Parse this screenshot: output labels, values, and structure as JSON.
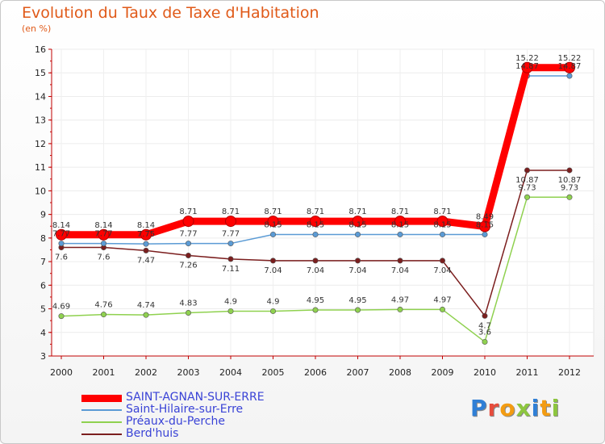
{
  "title": "Evolution du Taux de Taxe d'Habitation",
  "unit": "(en %)",
  "logo": "Proxiti",
  "chart_data": {
    "type": "line",
    "title": "Evolution du Taux de Taxe d'Habitation",
    "ylabel": "(en %)",
    "xlabel": "",
    "categories": [
      "2000",
      "2001",
      "2002",
      "2003",
      "2004",
      "2005",
      "2006",
      "2007",
      "2008",
      "2009",
      "2010",
      "2011",
      "2012"
    ],
    "ylim": [
      3,
      16
    ],
    "yticks": [
      3,
      4,
      5,
      6,
      7,
      8,
      9,
      10,
      11,
      12,
      13,
      14,
      15,
      16
    ],
    "legend_position": "bottom-left",
    "series": [
      {
        "name": "SAINT-AGNAN-SUR-ERRE",
        "color": "#ff0000",
        "width": 9,
        "labels_below": false,
        "values": [
          8.14,
          8.14,
          8.14,
          8.71,
          8.71,
          8.71,
          8.71,
          8.71,
          8.71,
          8.71,
          8.49,
          15.22,
          15.22
        ]
      },
      {
        "name": "Saint-Hilaire-sur-Erre",
        "color": "#5b9bd5",
        "width": 1.5,
        "labels_below": false,
        "values": [
          7.77,
          7.77,
          7.75,
          7.77,
          7.77,
          8.15,
          8.15,
          8.15,
          8.15,
          8.15,
          8.15,
          14.87,
          14.87
        ]
      },
      {
        "name": "Préaux-du-Perche",
        "color": "#8fd14f",
        "width": 1.5,
        "labels_below": false,
        "values": [
          4.69,
          4.76,
          4.74,
          4.83,
          4.9,
          4.9,
          4.95,
          4.95,
          4.97,
          4.97,
          3.6,
          9.73,
          9.73
        ]
      },
      {
        "name": "Berd'huis",
        "color": "#7b1e1e",
        "width": 1.5,
        "labels_below": true,
        "values": [
          7.6,
          7.6,
          7.47,
          7.26,
          7.11,
          7.04,
          7.04,
          7.04,
          7.04,
          7.04,
          4.7,
          10.87,
          10.87
        ]
      }
    ]
  }
}
